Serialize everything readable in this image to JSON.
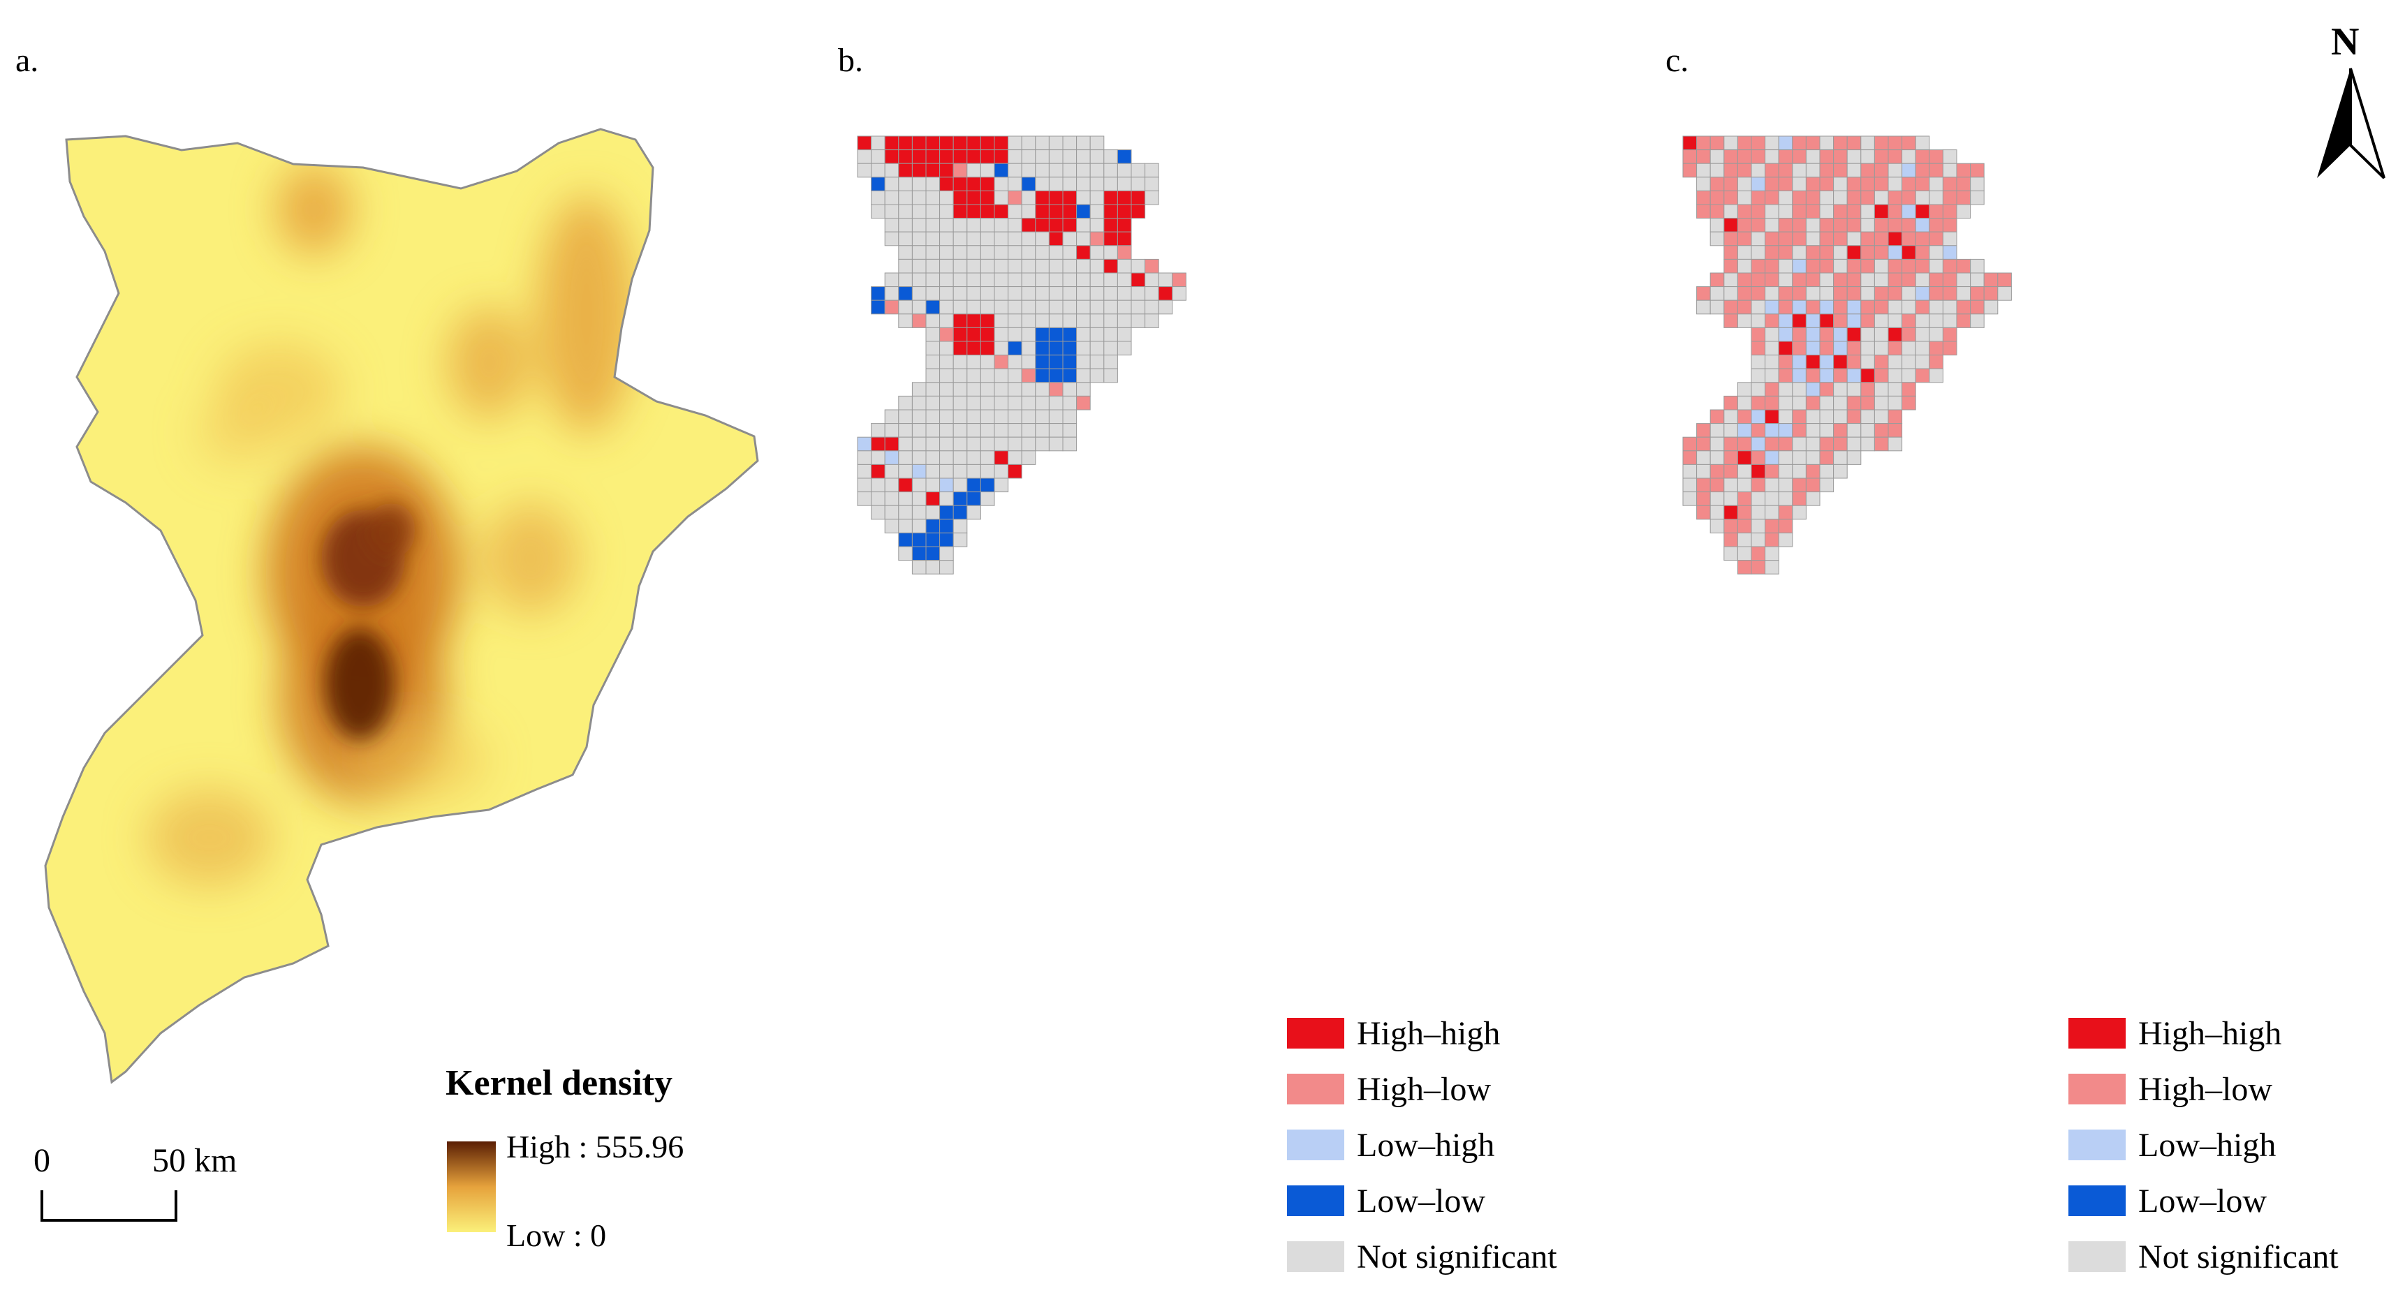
{
  "panels": {
    "a": {
      "label": "a."
    },
    "b": {
      "label": "b."
    },
    "c": {
      "label": "c."
    }
  },
  "kernel_legend": {
    "title": "Kernel density",
    "high_label": "High : 555.96",
    "low_label": "Low : 0",
    "high_value": 555.96,
    "low_value": 0
  },
  "scale_bar": {
    "zero": "0",
    "end": "50 km"
  },
  "north_arrow": {
    "label": "N"
  },
  "lisa_legend": [
    {
      "key": "hh",
      "label": "High–high",
      "color": "#e8101a"
    },
    {
      "key": "hl",
      "label": "High–low",
      "color": "#f28a8a"
    },
    {
      "key": "lh",
      "label": "Low–high",
      "color": "#b9cff5"
    },
    {
      "key": "ll",
      "label": "Low–low",
      "color": "#0a5ad6"
    },
    {
      "key": "ns",
      "label": "Not significant",
      "color": "#dcdcdc"
    }
  ],
  "colors": {
    "density_low": "#fbf07a",
    "density_mid": "#e6a23c",
    "density_high": "#5a1e04",
    "grid_line": "#9a9a9a"
  }
}
